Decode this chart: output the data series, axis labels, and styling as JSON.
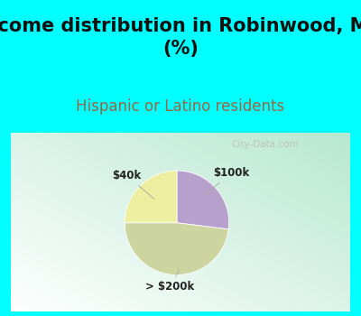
{
  "title": "Income distribution in Robinwood, MD\n(%)",
  "subtitle": "Hispanic or Latino residents",
  "slices": [
    {
      "label": "$100k",
      "value": 27,
      "color": "#b8a0cc"
    },
    {
      "label": "> $200k",
      "value": 48,
      "color": "#ccd4a0"
    },
    {
      "label": "$40k",
      "value": 25,
      "color": "#eeeea0"
    }
  ],
  "title_fontsize": 15,
  "subtitle_fontsize": 12,
  "subtitle_color": "#996644",
  "title_color": "#111111",
  "top_bg_color": "#00ffff",
  "watermark": "City-Data.com",
  "start_angle": 90,
  "label_color": "#222222",
  "line_color": "#aaaaaa"
}
